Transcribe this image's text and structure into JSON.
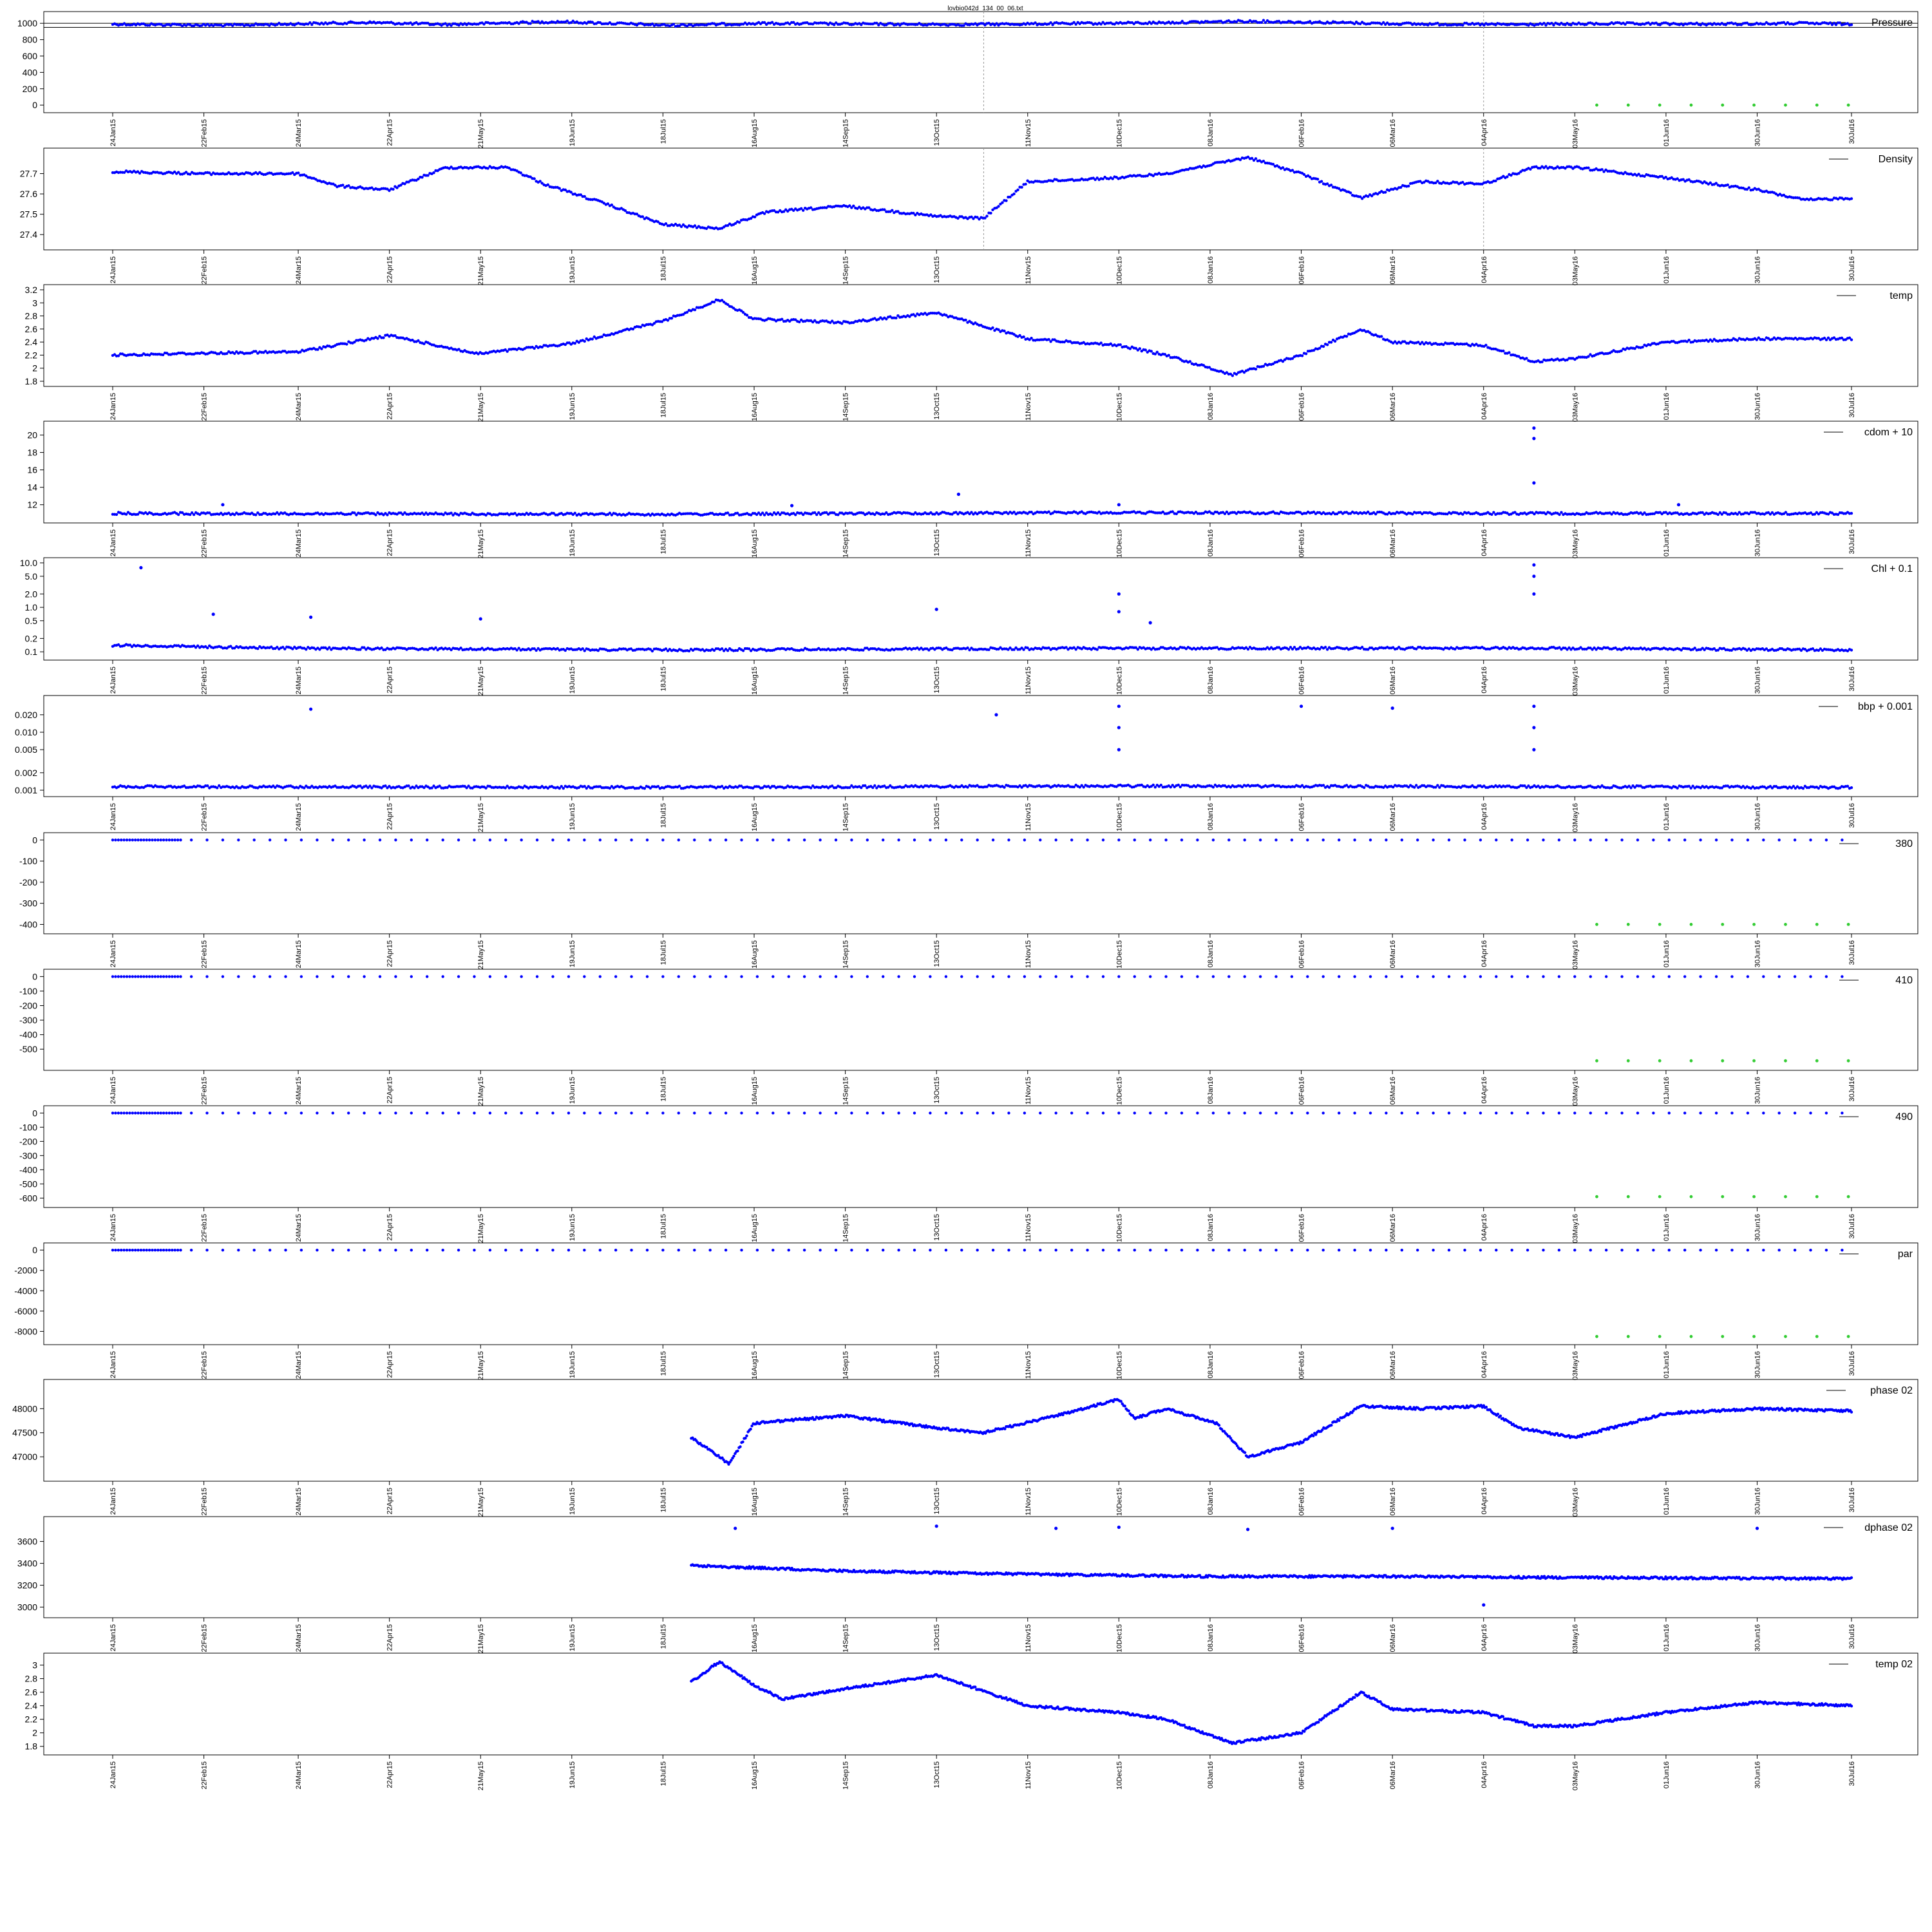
{
  "figure_title": "lovbio042d_134_00_06.txt",
  "x_tick_labels": [
    "24Jan15",
    "22Feb15",
    "24Mar15",
    "22Apr15",
    "21May15",
    "19Jun15",
    "18Jul15",
    "16Aug15",
    "14Sep15",
    "13Oct15",
    "11Nov15",
    "10Dec15",
    "08Jan16",
    "06Feb16",
    "06Mar16",
    "04Apr16",
    "03May16",
    "01Jun16",
    "30Jun16",
    "30Jul16"
  ],
  "colors": {
    "data": "#0000ff",
    "highlight": "#33cc33",
    "axis": "#000000",
    "refline": "#999999"
  },
  "chart_data": [
    {
      "type": "scatter",
      "legend": "Pressure",
      "ylim": [
        -30,
        1080
      ],
      "yticks": [
        0,
        200,
        400,
        600,
        800,
        1000
      ],
      "series": [
        {
          "kind": "blue",
          "x": [
            "2015-01-24",
            "2015-03-01",
            "2015-04-15",
            "2015-05-10",
            "2015-06-15",
            "2015-07-20",
            "2015-08-20",
            "2015-09-20",
            "2015-10-20",
            "2015-11-20",
            "2015-12-20",
            "2016-01-20",
            "2016-02-15",
            "2016-03-15",
            "2016-04-15",
            "2016-05-15",
            "2016-06-15",
            "2016-07-15",
            "2016-07-30"
          ],
          "y": [
            990,
            975,
            1010,
            985,
            1020,
            975,
            1000,
            990,
            985,
            995,
            1005,
            1025,
            1010,
            990,
            985,
            995,
            990,
            1000,
            990
          ]
        },
        {
          "kind": "green",
          "x": [
            "2016-05-10",
            "2016-05-20",
            "2016-05-30",
            "2016-06-09",
            "2016-06-19",
            "2016-06-29",
            "2016-07-09",
            "2016-07-19",
            "2016-07-29"
          ],
          "y": [
            0,
            0,
            0,
            0,
            0,
            0,
            0,
            0,
            0
          ]
        }
      ],
      "hlines": [
        1000,
        950
      ],
      "vlines": [
        "2015-10-28",
        "2016-04-04"
      ]
    },
    {
      "type": "scatter",
      "legend": "Density",
      "ylim": [
        27.35,
        27.8
      ],
      "yticks": [
        27.4,
        27.5,
        27.6,
        27.7
      ],
      "series": [
        {
          "kind": "blue",
          "x": [
            "2015-01-24",
            "2015-02-22",
            "2015-03-24",
            "2015-04-05",
            "2015-04-22",
            "2015-05-10",
            "2015-05-30",
            "2015-06-10",
            "2015-06-30",
            "2015-07-18",
            "2015-08-05",
            "2015-08-20",
            "2015-09-14",
            "2015-10-13",
            "2015-10-28",
            "2015-11-11",
            "2015-12-10",
            "2015-12-25",
            "2016-01-20",
            "2016-02-06",
            "2016-02-25",
            "2016-03-15",
            "2016-04-04",
            "2016-04-20",
            "2016-05-03",
            "2016-06-01",
            "2016-06-30",
            "2016-07-15",
            "2016-07-30"
          ],
          "y": [
            27.71,
            27.7,
            27.7,
            27.64,
            27.62,
            27.73,
            27.73,
            27.65,
            27.55,
            27.45,
            27.43,
            27.51,
            27.54,
            27.49,
            27.48,
            27.66,
            27.68,
            27.7,
            27.78,
            27.7,
            27.58,
            27.66,
            27.65,
            27.73,
            27.73,
            27.68,
            27.62,
            27.57,
            27.58
          ]
        }
      ],
      "vlines": [
        "2015-10-28",
        "2016-04-04"
      ]
    },
    {
      "type": "scatter",
      "legend": "temp",
      "ylim": [
        1.8,
        3.2
      ],
      "yticks": [
        1.8,
        2.0,
        2.2,
        2.4,
        2.6,
        2.8,
        3.0,
        3.2
      ],
      "series": [
        {
          "kind": "blue",
          "x": [
            "2015-01-24",
            "2015-02-22",
            "2015-03-24",
            "2015-04-22",
            "2015-05-20",
            "2015-06-19",
            "2015-07-18",
            "2015-08-05",
            "2015-08-16",
            "2015-09-14",
            "2015-10-13",
            "2015-11-11",
            "2015-12-10",
            "2015-12-25",
            "2016-01-15",
            "2016-02-06",
            "2016-02-25",
            "2016-03-06",
            "2016-04-04",
            "2016-04-20",
            "2016-05-03",
            "2016-06-01",
            "2016-06-30",
            "2016-07-30"
          ],
          "y": [
            2.2,
            2.23,
            2.25,
            2.5,
            2.22,
            2.38,
            2.72,
            3.05,
            2.75,
            2.7,
            2.85,
            2.45,
            2.35,
            2.2,
            1.9,
            2.2,
            2.6,
            2.4,
            2.35,
            2.1,
            2.15,
            2.4,
            2.45,
            2.45
          ]
        }
      ]
    },
    {
      "type": "scatter",
      "legend": "cdom + 10",
      "ylim": [
        10.5,
        21
      ],
      "yticks": [
        12,
        14,
        16,
        18,
        20
      ],
      "series": [
        {
          "kind": "blue",
          "x": [
            "2015-01-24",
            "2015-07-18",
            "2015-12-10",
            "2016-04-20",
            "2016-07-30"
          ],
          "y": [
            11.0,
            10.9,
            11.1,
            11.0,
            11.0
          ]
        },
        {
          "kind": "blue-spike",
          "x": [
            "2015-02-28",
            "2015-08-28",
            "2015-10-20",
            "2015-12-10",
            "2016-04-20",
            "2016-04-20",
            "2016-04-20",
            "2016-06-05"
          ],
          "y": [
            12.0,
            11.9,
            13.2,
            12.0,
            14.5,
            19.6,
            20.8,
            12.0
          ]
        }
      ]
    },
    {
      "type": "scatter",
      "legend": "Chl + 0.1",
      "yscale": "log",
      "ylim": [
        0.085,
        10.0
      ],
      "yticks": [
        0.1,
        0.2,
        0.5,
        1.0,
        2.0,
        5.0,
        10.0
      ],
      "ytick_labels": [
        "0.1",
        "0.2",
        "0.5",
        "1.0",
        "2.0",
        "5.0",
        "10.0"
      ],
      "series": [
        {
          "kind": "blue",
          "x": [
            "2015-01-24",
            "2015-02-22",
            "2015-03-24",
            "2015-07-18",
            "2015-12-10",
            "2016-04-20",
            "2016-07-30"
          ],
          "y": [
            0.14,
            0.13,
            0.12,
            0.11,
            0.12,
            0.12,
            0.11
          ]
        },
        {
          "kind": "blue-spike",
          "x": [
            "2015-02-02",
            "2015-02-25",
            "2015-03-28",
            "2015-05-21",
            "2015-10-13",
            "2015-12-10",
            "2015-12-10",
            "2015-12-20",
            "2016-04-20",
            "2016-04-20",
            "2016-04-20"
          ],
          "y": [
            7.8,
            0.7,
            0.6,
            0.55,
            0.9,
            2.0,
            0.8,
            0.45,
            2.0,
            5.0,
            9.0
          ]
        }
      ]
    },
    {
      "type": "scatter",
      "legend": "bbp + 0.001",
      "yscale": "log",
      "ylim": [
        0.00095,
        0.035
      ],
      "yticks": [
        0.001,
        0.002,
        0.005,
        0.01,
        0.02
      ],
      "ytick_labels": [
        "0.001",
        "0.002",
        "0.005",
        "0.010",
        "0.020"
      ],
      "series": [
        {
          "kind": "blue",
          "x": [
            "2015-01-24",
            "2015-07-18",
            "2015-12-10",
            "2016-04-20",
            "2016-07-30"
          ],
          "y": [
            0.00115,
            0.00112,
            0.00118,
            0.00115,
            0.00112
          ]
        },
        {
          "kind": "blue-spike",
          "x": [
            "2015-12-10",
            "2015-12-10",
            "2015-12-10",
            "2016-04-20",
            "2016-04-20",
            "2016-04-20",
            "2015-03-28",
            "2015-11-01",
            "2016-02-06",
            "2016-03-06"
          ],
          "y": [
            0.028,
            0.012,
            0.005,
            0.028,
            0.012,
            0.005,
            0.025,
            0.02,
            0.028,
            0.026
          ]
        }
      ]
    },
    {
      "type": "scatter",
      "legend": "380",
      "ylim": [
        -420,
        10
      ],
      "yticks": [
        -400,
        -300,
        -200,
        -100,
        0
      ],
      "series": [
        {
          "kind": "blue-sparse",
          "x": [
            "2015-01-24",
            "2016-07-30"
          ],
          "y": [
            0,
            0
          ]
        },
        {
          "kind": "green",
          "x": [
            "2016-05-10",
            "2016-05-20",
            "2016-05-30",
            "2016-06-09",
            "2016-06-19",
            "2016-06-29",
            "2016-07-09",
            "2016-07-19",
            "2016-07-29"
          ],
          "y": [
            -400,
            -400,
            -400,
            -400,
            -400,
            -400,
            -400,
            -400,
            -400
          ]
        }
      ]
    },
    {
      "type": "scatter",
      "legend": "410",
      "ylim": [
        -610,
        15
      ],
      "yticks": [
        -500,
        -400,
        -300,
        -200,
        -100,
        0
      ],
      "series": [
        {
          "kind": "blue-sparse",
          "x": [
            "2015-01-24",
            "2016-07-30"
          ],
          "y": [
            0,
            0
          ]
        },
        {
          "kind": "green",
          "x": [
            "2016-05-10",
            "2016-05-20",
            "2016-05-30",
            "2016-06-09",
            "2016-06-19",
            "2016-06-29",
            "2016-07-09",
            "2016-07-19",
            "2016-07-29"
          ],
          "y": [
            -580,
            -580,
            -580,
            -580,
            -580,
            -580,
            -580,
            -580,
            -580
          ]
        }
      ]
    },
    {
      "type": "scatter",
      "legend": "490",
      "ylim": [
        -630,
        15
      ],
      "yticks": [
        -600,
        -500,
        -400,
        -300,
        -200,
        -100,
        0
      ],
      "series": [
        {
          "kind": "blue-sparse",
          "x": [
            "2015-01-24",
            "2016-07-30"
          ],
          "y": [
            0,
            0
          ]
        },
        {
          "kind": "green",
          "x": [
            "2016-05-10",
            "2016-05-20",
            "2016-05-30",
            "2016-06-09",
            "2016-06-19",
            "2016-06-29",
            "2016-07-09",
            "2016-07-19",
            "2016-07-29"
          ],
          "y": [
            -590,
            -590,
            -590,
            -590,
            -590,
            -590,
            -590,
            -590,
            -590
          ]
        }
      ]
    },
    {
      "type": "scatter",
      "legend": "par",
      "ylim": [
        -8800,
        200
      ],
      "yticks": [
        -8000,
        -6000,
        -4000,
        -2000,
        0
      ],
      "series": [
        {
          "kind": "blue-sparse",
          "x": [
            "2015-01-24",
            "2016-07-30"
          ],
          "y": [
            0,
            0
          ]
        },
        {
          "kind": "green",
          "x": [
            "2016-05-10",
            "2016-05-20",
            "2016-05-30",
            "2016-06-09",
            "2016-06-19",
            "2016-06-29",
            "2016-07-09",
            "2016-07-19",
            "2016-07-29"
          ],
          "y": [
            -8500,
            -8500,
            -8500,
            -8500,
            -8500,
            -8500,
            -8500,
            -8500,
            -8500
          ]
        }
      ]
    },
    {
      "type": "scatter",
      "legend": "phase 02",
      "ylim": [
        46600,
        48500
      ],
      "yticks": [
        47000,
        47500,
        48000
      ],
      "series": [
        {
          "kind": "blue",
          "x": [
            "2015-07-27",
            "2015-08-05",
            "2015-08-08",
            "2015-08-16",
            "2015-09-14",
            "2015-10-13",
            "2015-10-28",
            "2015-11-20",
            "2015-12-10",
            "2015-12-15",
            "2015-12-25",
            "2016-01-10",
            "2016-01-20",
            "2016-02-06",
            "2016-02-25",
            "2016-03-15",
            "2016-04-04",
            "2016-04-15",
            "2016-05-03",
            "2016-06-01",
            "2016-06-30",
            "2016-07-30"
          ],
          "y": [
            47400,
            47000,
            46850,
            47700,
            47850,
            47600,
            47500,
            47850,
            48200,
            47800,
            48000,
            47700,
            47000,
            47300,
            48050,
            48000,
            48050,
            47600,
            47400,
            47900,
            48000,
            47950
          ]
        }
      ]
    },
    {
      "type": "scatter",
      "legend": "dphase 02",
      "ylim": [
        2950,
        3780
      ],
      "yticks": [
        3000,
        3200,
        3400,
        3600
      ],
      "series": [
        {
          "kind": "blue",
          "x": [
            "2015-07-27",
            "2015-09-14",
            "2015-11-11",
            "2016-01-08",
            "2016-03-06",
            "2016-05-03",
            "2016-07-30"
          ],
          "y": [
            3380,
            3330,
            3300,
            3280,
            3280,
            3270,
            3260
          ]
        },
        {
          "kind": "blue-spike",
          "x": [
            "2015-08-10",
            "2015-10-13",
            "2015-11-20",
            "2015-12-10",
            "2016-01-20",
            "2016-03-06",
            "2016-04-04",
            "2016-06-30"
          ],
          "y": [
            3720,
            3740,
            3720,
            3730,
            3710,
            3720,
            3020,
            3720
          ]
        }
      ]
    },
    {
      "type": "scatter",
      "legend": "temp 02",
      "ylim": [
        1.75,
        3.1
      ],
      "yticks": [
        1.8,
        2.0,
        2.2,
        2.4,
        2.6,
        2.8,
        3.0
      ],
      "series": [
        {
          "kind": "blue",
          "x": [
            "2015-07-27",
            "2015-08-05",
            "2015-08-16",
            "2015-08-25",
            "2015-09-14",
            "2015-10-13",
            "2015-11-11",
            "2015-12-10",
            "2015-12-25",
            "2016-01-15",
            "2016-02-06",
            "2016-02-25",
            "2016-03-06",
            "2016-04-04",
            "2016-04-20",
            "2016-05-03",
            "2016-06-01",
            "2016-06-30",
            "2016-07-30"
          ],
          "y": [
            2.75,
            3.05,
            2.7,
            2.5,
            2.65,
            2.85,
            2.4,
            2.3,
            2.2,
            1.85,
            2.0,
            2.6,
            2.35,
            2.3,
            2.1,
            2.1,
            2.3,
            2.45,
            2.4
          ]
        }
      ]
    }
  ]
}
